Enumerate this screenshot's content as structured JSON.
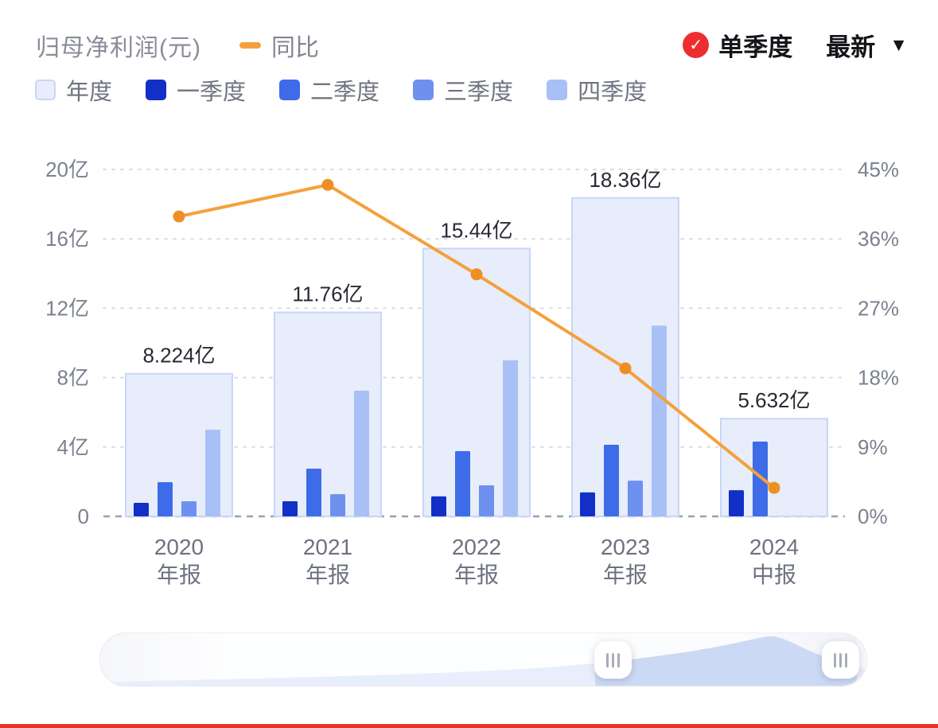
{
  "header": {
    "title": "归母净利润(元)",
    "line_legend_label": "同比",
    "quarter_toggle_label": "单季度",
    "latest_label": "最新",
    "check_glyph": "✓",
    "caret_glyph": "▼"
  },
  "legend": {
    "items": [
      {
        "label": "年度",
        "color": "#e7edfb",
        "border": "#c9d6f7"
      },
      {
        "label": "一季度",
        "color": "#1230c5",
        "border": "#1230c5"
      },
      {
        "label": "二季度",
        "color": "#3e6ce8",
        "border": "#3e6ce8"
      },
      {
        "label": "三季度",
        "color": "#6e90ee",
        "border": "#6e90ee"
      },
      {
        "label": "四季度",
        "color": "#a9c0f6",
        "border": "#a9c0f6"
      }
    ]
  },
  "chart_data": {
    "type": "bar",
    "title": "归母净利润(元)",
    "unit": "亿",
    "legend_position": "top",
    "grid": true,
    "categories": [
      [
        "2020",
        "年报"
      ],
      [
        "2021",
        "年报"
      ],
      [
        "2022",
        "年报"
      ],
      [
        "2023",
        "年报"
      ],
      [
        "2024",
        "中报"
      ]
    ],
    "annual_series": {
      "name": "年度",
      "values_yi": [
        8.224,
        11.76,
        15.44,
        18.36,
        5.632
      ],
      "labels": [
        "8.224亿",
        "11.76亿",
        "15.44亿",
        "18.36亿",
        "5.632亿"
      ],
      "fill": "#e7edfb",
      "border": "#c9d6f7"
    },
    "quarter_series": [
      {
        "name": "一季度",
        "color": "#1230c5",
        "values_yi": [
          0.78,
          0.87,
          1.15,
          1.38,
          1.51
        ]
      },
      {
        "name": "二季度",
        "color": "#3e6ce8",
        "values_yi": [
          1.97,
          2.75,
          3.76,
          4.13,
          4.31
        ]
      },
      {
        "name": "三季度",
        "color": "#6e90ee",
        "values_yi": [
          0.87,
          1.28,
          1.79,
          2.06,
          null
        ]
      },
      {
        "name": "四季度",
        "color": "#a9c0f6",
        "values_yi": [
          5.0,
          7.25,
          9.0,
          11.0,
          null
        ]
      }
    ],
    "line_series": {
      "name": "同比",
      "color": "#f4a13c",
      "dot_color": "#ee8f26",
      "values_pct": [
        38.9,
        43.0,
        31.4,
        19.2,
        3.7
      ]
    },
    "left_axis": {
      "max_yi": 20,
      "ticks": [
        "0",
        "4亿",
        "8亿",
        "12亿",
        "16亿",
        "20亿"
      ]
    },
    "right_axis": {
      "max_pct": 45,
      "ticks": [
        "0%",
        "9%",
        "18%",
        "27%",
        "36%",
        "45%"
      ]
    }
  },
  "colors": {
    "badge_red": "#ee2e2e",
    "accent_orange": "#f4a13c",
    "bottom_bar_red": "#e2342b"
  }
}
